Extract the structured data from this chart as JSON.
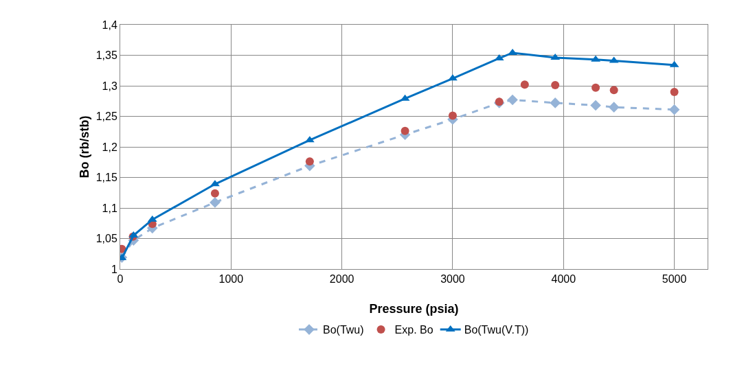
{
  "chart_data": {
    "type": "line",
    "xlabel": "Pressure (psia)",
    "ylabel": "Bo (rb/stb)",
    "xlim": [
      0,
      5300
    ],
    "xticks": [
      0,
      1000,
      2000,
      3000,
      4000,
      5000
    ],
    "ylim": [
      1,
      1.4
    ],
    "yticks": [
      1,
      {
        "value": 1.05,
        "label": "1,05"
      },
      {
        "value": 1.1,
        "label": "1,1"
      },
      {
        "value": 1.15,
        "label": "1,15"
      },
      {
        "value": 1.2,
        "label": "1,2"
      },
      {
        "value": 1.25,
        "label": "1,25"
      },
      {
        "value": 1.3,
        "label": "1,3"
      },
      {
        "value": 1.35,
        "label": "1,35"
      },
      {
        "value": 1.4,
        "label": "1,4"
      }
    ],
    "grid": true,
    "legend": "bottom",
    "series": [
      {
        "name": "Bo(Twu)",
        "type": "line",
        "color": "#95b3d7",
        "marker": "diamond",
        "line_style": "dashed",
        "x": [
          15,
          120,
          290,
          855,
          1710,
          2570,
          3000,
          3420,
          3540,
          3925,
          4290,
          4455,
          5000
        ],
        "values": [
          1.019,
          1.047,
          1.067,
          1.109,
          1.169,
          1.22,
          1.245,
          1.272,
          1.277,
          1.272,
          1.268,
          1.265,
          1.261
        ]
      },
      {
        "name": "Exp. Bo",
        "type": "scatter",
        "color": "#c0504d",
        "marker": "circle",
        "x": [
          15,
          115,
          290,
          855,
          1710,
          2570,
          3000,
          3420,
          3650,
          3925,
          4290,
          4455,
          5000
        ],
        "values": [
          1.033,
          1.053,
          1.074,
          1.124,
          1.176,
          1.226,
          1.251,
          1.274,
          1.302,
          1.301,
          1.297,
          1.293,
          1.29
        ]
      },
      {
        "name": "Bo(Twu(V.T))",
        "type": "line",
        "color": "#0070c0",
        "marker": "triangle",
        "line_style": "solid",
        "x": [
          15,
          120,
          290,
          855,
          1710,
          2570,
          3000,
          3420,
          3540,
          3925,
          4290,
          4455,
          5000
        ],
        "values": [
          1.018,
          1.055,
          1.081,
          1.139,
          1.211,
          1.279,
          1.312,
          1.345,
          1.354,
          1.346,
          1.343,
          1.341,
          1.334
        ]
      }
    ]
  }
}
